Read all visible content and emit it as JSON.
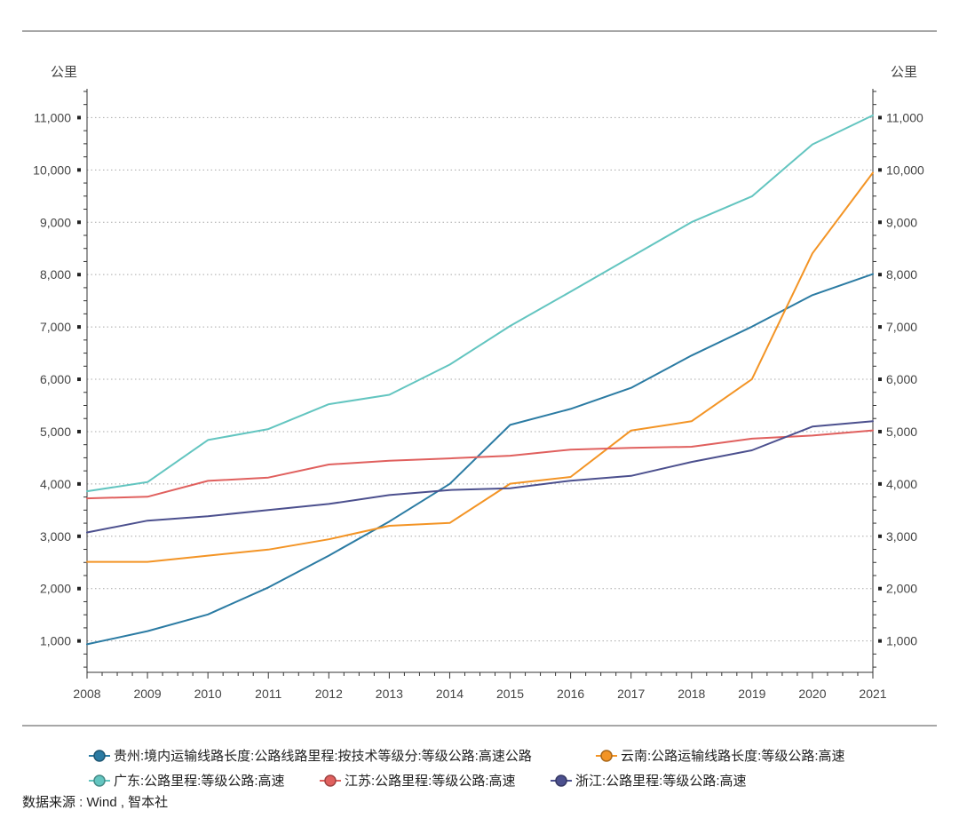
{
  "chart_data": {
    "type": "line",
    "title": "",
    "xlabel": "",
    "y_unit": "公里",
    "x": [
      "2008",
      "2009",
      "2010",
      "2011",
      "2012",
      "2013",
      "2014",
      "2015",
      "2016",
      "2017",
      "2018",
      "2019",
      "2020",
      "2021"
    ],
    "y_ticks": [
      1000,
      2000,
      3000,
      4000,
      5000,
      6000,
      7000,
      8000,
      9000,
      10000,
      11000
    ],
    "y_tick_labels": [
      "1,000",
      "2,000",
      "3,000",
      "4,000",
      "5,000",
      "6,000",
      "7,000",
      "8,000",
      "9,000",
      "10,000",
      "11,000"
    ],
    "ylim": [
      400,
      11550
    ],
    "grid": true,
    "legend_position": "bottom",
    "series": [
      {
        "name": "贵州:境内运输线路长度:公路线路里程:按技术等级分:等级公路:高速公路",
        "color": "#2B7BA3",
        "values": [
          936,
          1188,
          1507,
          2023,
          2630,
          3281,
          4002,
          5128,
          5433,
          5835,
          6453,
          7005,
          7607,
          8010
        ]
      },
      {
        "name": "云南:公路运输线路长度:等级公路:高速",
        "color": "#F39425",
        "values": [
          2512,
          2512,
          2630,
          2746,
          2943,
          3200,
          3255,
          4005,
          4134,
          5022,
          5198,
          6003,
          8406,
          9947
        ]
      },
      {
        "name": "广东:公路里程:等级公路:高速",
        "color": "#63C5C0",
        "values": [
          3860,
          4035,
          4839,
          5049,
          5524,
          5703,
          6280,
          7018,
          7673,
          8338,
          9002,
          9495,
          10488,
          11042
        ]
      },
      {
        "name": "江苏:公路里程:等级公路:高速",
        "color": "#E0605E",
        "values": [
          3725,
          3755,
          4059,
          4122,
          4371,
          4443,
          4488,
          4539,
          4657,
          4688,
          4711,
          4865,
          4925,
          5023
        ]
      },
      {
        "name": "浙江:公路里程:等级公路:高速",
        "color": "#4C508E",
        "values": [
          3073,
          3298,
          3383,
          3500,
          3618,
          3787,
          3884,
          3917,
          4062,
          4154,
          4421,
          4643,
          5096,
          5200
        ]
      }
    ]
  },
  "source": "数据来源 : Wind , 智本社"
}
